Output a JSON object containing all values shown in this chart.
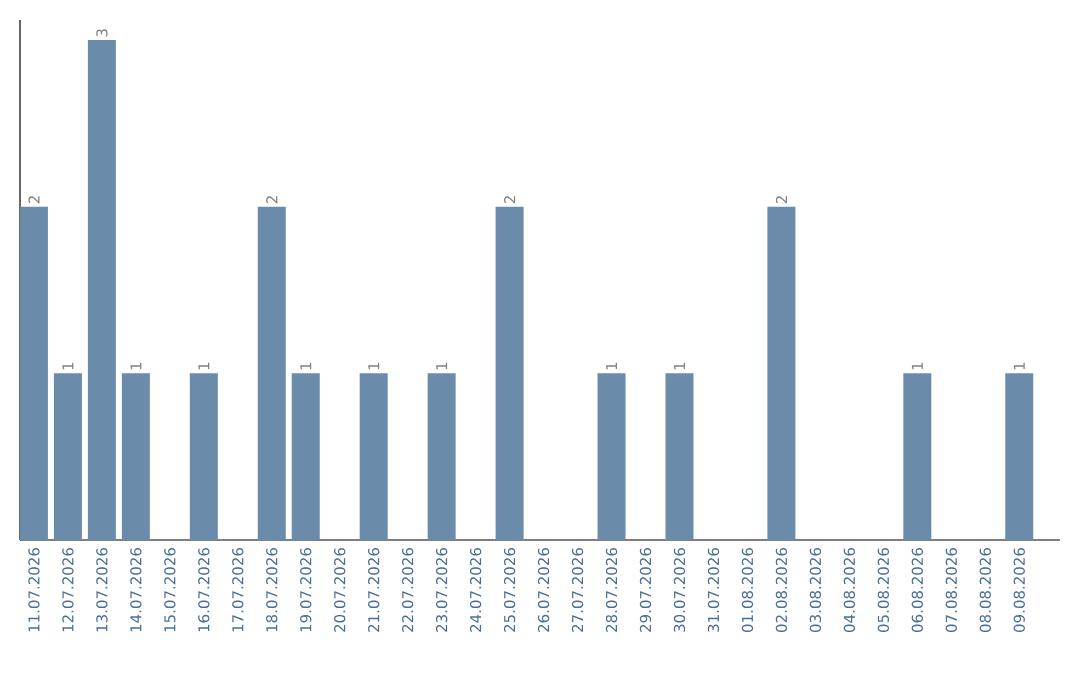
{
  "chart_data": {
    "type": "bar",
    "categories": [
      "11.07.2026",
      "12.07.2026",
      "13.07.2026",
      "14.07.2026",
      "15.07.2026",
      "16.07.2026",
      "17.07.2026",
      "18.07.2026",
      "19.07.2026",
      "20.07.2026",
      "21.07.2026",
      "22.07.2026",
      "23.07.2026",
      "24.07.2026",
      "25.07.2026",
      "26.07.2026",
      "27.07.2026",
      "28.07.2026",
      "29.07.2026",
      "30.07.2026",
      "31.07.2026",
      "01.08.2026",
      "02.08.2026",
      "03.08.2026",
      "04.08.2026",
      "05.08.2026",
      "06.08.2026",
      "07.08.2026",
      "08.08.2026",
      "09.08.2026"
    ],
    "values": [
      2,
      1,
      3,
      1,
      0,
      1,
      0,
      2,
      1,
      0,
      1,
      0,
      1,
      0,
      2,
      0,
      0,
      1,
      0,
      1,
      0,
      0,
      2,
      0,
      0,
      0,
      1,
      0,
      0,
      1
    ],
    "value_labels": [
      "2",
      "1",
      "3",
      "1",
      null,
      "1",
      null,
      "2",
      "1",
      null,
      "1",
      null,
      "1",
      null,
      "2",
      null,
      null,
      "1",
      null,
      "1",
      null,
      null,
      "2",
      null,
      null,
      null,
      "1",
      null,
      null,
      "1"
    ],
    "color": "#6b8bab",
    "ylim": [
      0,
      3.12
    ]
  }
}
